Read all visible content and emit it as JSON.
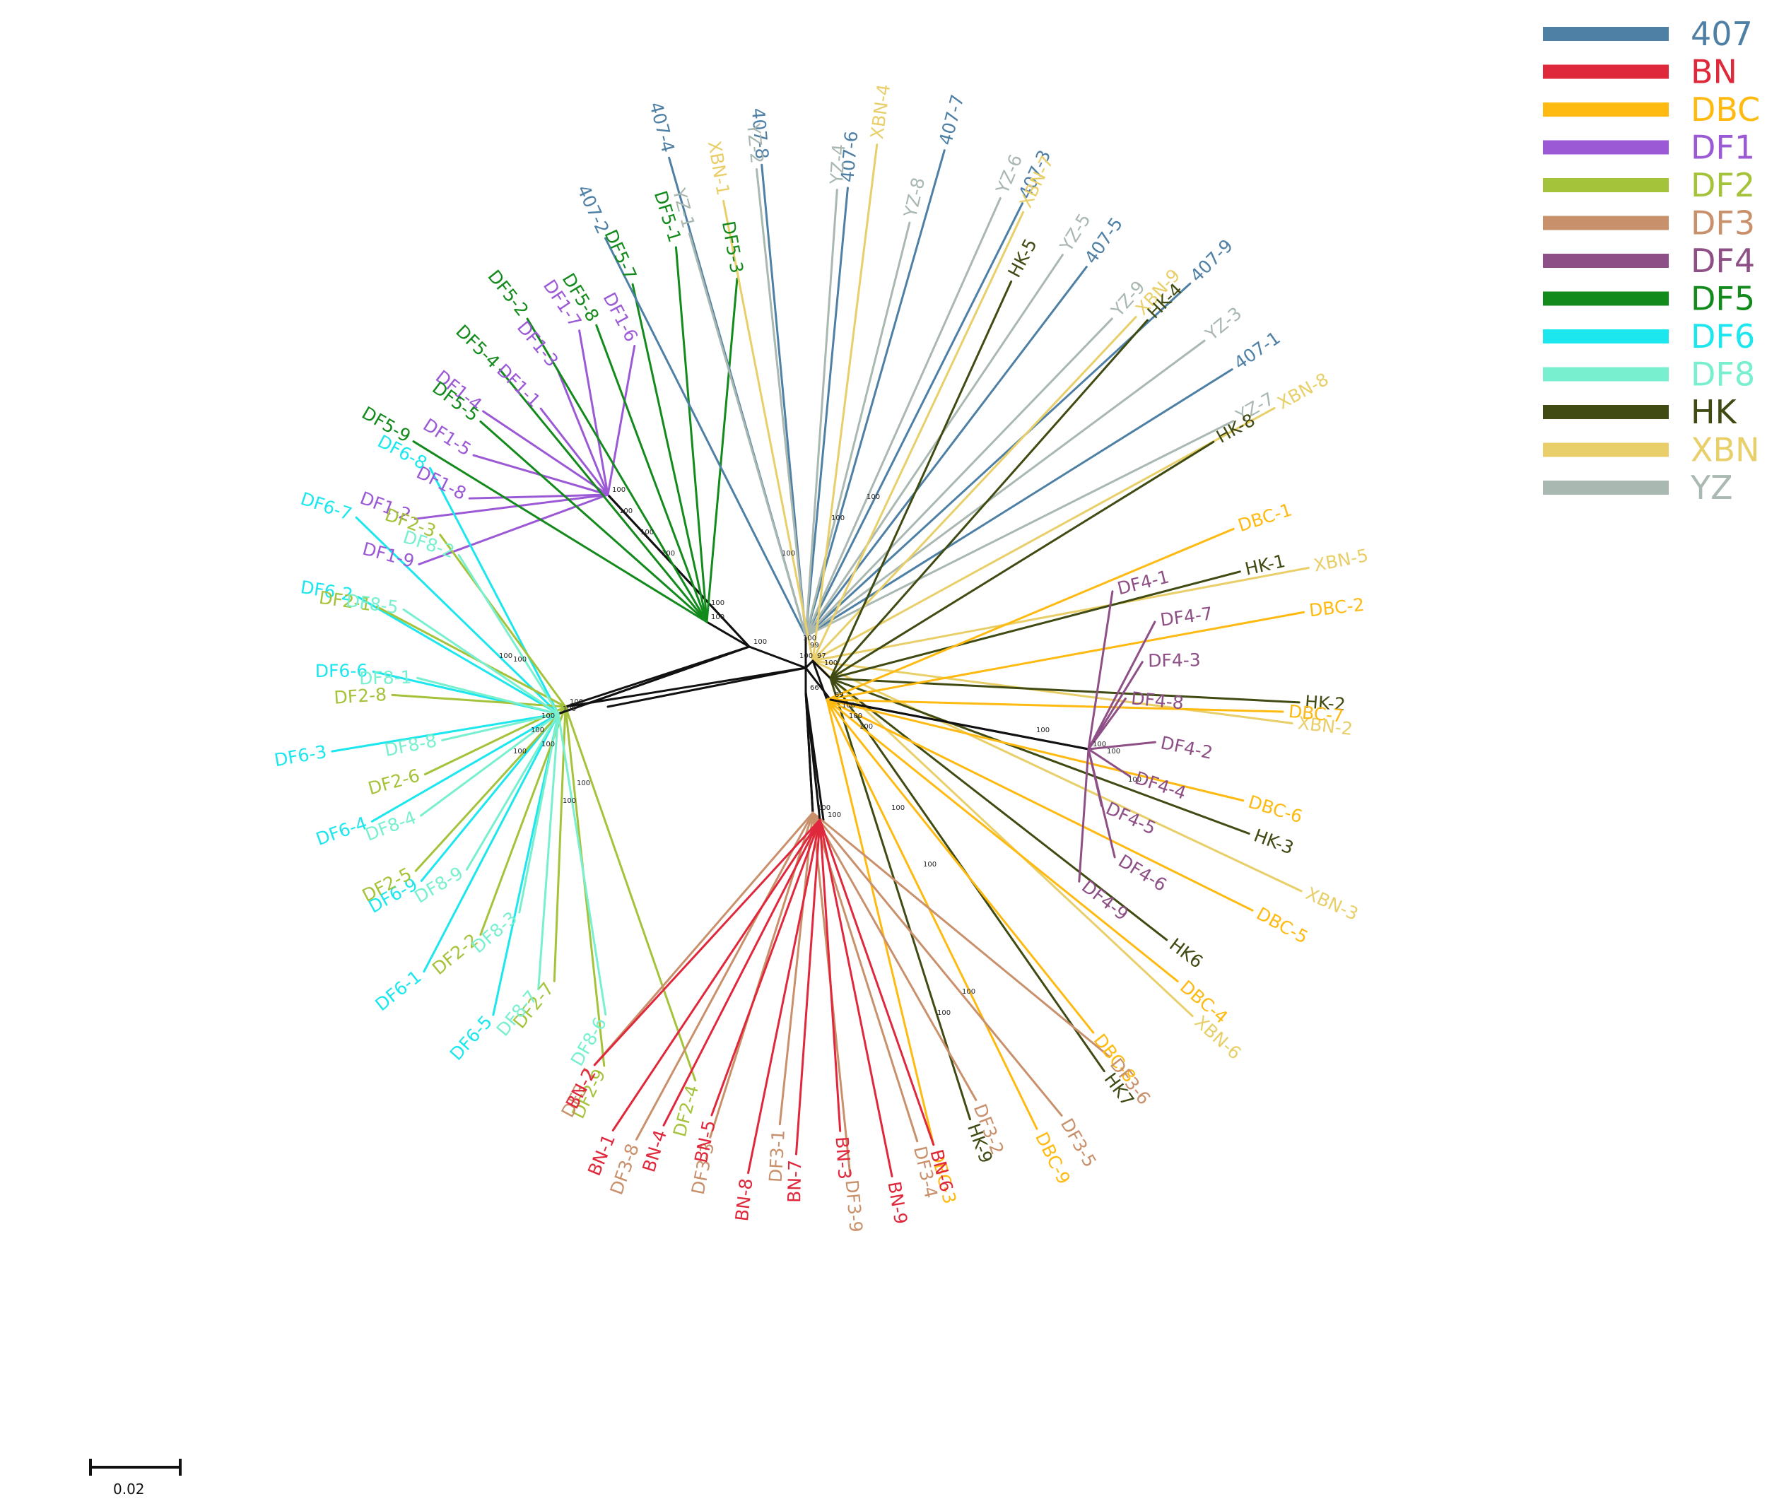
{
  "groups": [
    {
      "name": "407",
      "color": "#4e7fa4"
    },
    {
      "name": "BN",
      "color": "#e0283c"
    },
    {
      "name": "DBC",
      "color": "#ffba12"
    },
    {
      "name": "DF1",
      "color": "#9b59d6"
    },
    {
      "name": "DF2",
      "color": "#a5c33a"
    },
    {
      "name": "DF3",
      "color": "#c9906c"
    },
    {
      "name": "DF4",
      "color": "#8e4f86"
    },
    {
      "name": "DF5",
      "color": "#138a1c"
    },
    {
      "name": "DF6",
      "color": "#1ce6ee"
    },
    {
      "name": "DF8",
      "color": "#78f0cf"
    },
    {
      "name": "HK",
      "color": "#3f4b12"
    },
    {
      "name": "XBN",
      "color": "#e8cf6a"
    },
    {
      "name": "YZ",
      "color": "#a9b8b0"
    }
  ],
  "scale_bar": {
    "label": "0.02"
  },
  "clusters": [
    {
      "group": "DF1",
      "leaves": [
        "DF1-6",
        "DF1-7",
        "DF1-3",
        "DF1-1",
        "DF1-4",
        "DF1-5",
        "DF1-8",
        "DF1-2",
        "DF1-9"
      ]
    },
    {
      "group": "DF5",
      "leaves": [
        "DF5-3",
        "DF5-1",
        "DF5-7",
        "DF5-8",
        "DF5-2",
        "DF5-4",
        "DF5-5",
        "DF5-9"
      ]
    },
    {
      "group": "DF6",
      "leaves": [
        "DF6-8",
        "DF6-7",
        "DF6-2",
        "DF6-6",
        "DF6-3",
        "DF6-4",
        "DF6-9",
        "DF6-1",
        "DF6-5"
      ]
    },
    {
      "group": "DF2",
      "leaves": [
        "DF2-3",
        "DF2-1",
        "DF2-8",
        "DF2-6",
        "DF2-5",
        "DF2-2",
        "DF2-7",
        "DF2-9",
        "DF2-4"
      ]
    },
    {
      "group": "DF8",
      "leaves": [
        "DF8-2",
        "DF8-5",
        "DF8-1",
        "DF8-8",
        "DF8-4",
        "DF8-9",
        "DF8-3",
        "DF8-7",
        "DF8-6"
      ]
    },
    {
      "group": "407",
      "leaves": [
        "407-2",
        "407-4",
        "407-8",
        "407-6",
        "407-7",
        "407-3",
        "407-5",
        "407-9",
        "407-1"
      ]
    },
    {
      "group": "YZ",
      "leaves": [
        "YZ-1",
        "YZ-2",
        "YZ-4",
        "YZ-8",
        "YZ-6",
        "YZ-5",
        "YZ-9",
        "YZ-3",
        "YZ-7"
      ]
    },
    {
      "group": "XBN",
      "leaves": [
        "XBN-1",
        "XBN-4",
        "XBN-7",
        "XBN-9",
        "XBN-8",
        "XBN-5",
        "XBN-2",
        "XBN-3",
        "XBN-6"
      ]
    },
    {
      "group": "HK",
      "leaves": [
        "HK-5",
        "HK-4",
        "HK-8",
        "HK-1",
        "HK-2",
        "HK-3",
        "HK6",
        "HK7",
        "HK-9"
      ]
    },
    {
      "group": "DBC",
      "leaves": [
        "DBC-1",
        "DBC-2",
        "DBC-7",
        "DBC-6",
        "DBC-5",
        "DBC-4",
        "DBC-8",
        "DBC-9",
        "DBC-3"
      ]
    },
    {
      "group": "DF4",
      "leaves": [
        "DF4-1",
        "DF4-7",
        "DF4-3",
        "DF4-8",
        "DF4-2",
        "DF4-4",
        "DF4-5",
        "DF4-6",
        "DF4-9"
      ]
    },
    {
      "group": "DF3",
      "leaves": [
        "DF3-7",
        "DF3-8",
        "DF3-3",
        "DF3-1",
        "DF3-9",
        "DF3-4",
        "DF3-2",
        "DF3-5",
        "DF3-6"
      ]
    },
    {
      "group": "BN",
      "leaves": [
        "BN-2",
        "BN-1",
        "BN-4",
        "BN-5",
        "BN-8",
        "BN-7",
        "BN-3",
        "BN-9",
        "BN-6"
      ]
    }
  ],
  "node_labels": [
    "100",
    "99",
    "97",
    "89",
    "66",
    "100",
    "100",
    "100",
    "100",
    "100",
    "100",
    "100",
    "100",
    "100",
    "100",
    "100",
    "100",
    "100",
    "100",
    "100",
    "100",
    "100",
    "100",
    "100",
    "100",
    "100",
    "100",
    "100",
    "100",
    "100",
    "100",
    "100",
    "100",
    "100",
    "100",
    "100",
    "100",
    "100",
    "100",
    "100"
  ]
}
